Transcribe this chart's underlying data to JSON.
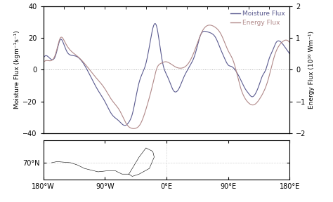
{
  "ylabel_left": "Moisture Flux (kgm⁻¹s⁻¹)",
  "ylabel_right": "Energy Flux (10¹⁰ Wm⁻¹)",
  "ylim_left": [
    -40,
    40
  ],
  "ylim_right": [
    -2,
    2
  ],
  "xlim": [
    -180,
    180
  ],
  "xticks": [
    -180,
    -90,
    0,
    90,
    180
  ],
  "xticklabels": [
    "180°W",
    "90°W",
    "0°E",
    "90°E",
    "180°E"
  ],
  "yticks_left": [
    -40,
    -20,
    0,
    20,
    40
  ],
  "yticks_right": [
    -2,
    -1,
    0,
    1,
    2
  ],
  "moisture_color": "#5a5a8f",
  "energy_color": "#b08888",
  "background_color": "#ffffff",
  "legend_moisture": "Moisture Flux",
  "legend_energy": "Energy Flux",
  "moisture_kp_x": [
    -180,
    -170,
    -162,
    -155,
    -150,
    -145,
    -138,
    -130,
    -120,
    -110,
    -100,
    -90,
    -80,
    -70,
    -60,
    -55,
    -50,
    -45,
    -40,
    -35,
    -30,
    -27,
    -24,
    -20,
    -15,
    -10,
    -5,
    0,
    5,
    10,
    18,
    25,
    35,
    42,
    50,
    58,
    65,
    72,
    78,
    85,
    90,
    95,
    100,
    108,
    115,
    120,
    125,
    130,
    135,
    140,
    145,
    150,
    155,
    160,
    165,
    170,
    175,
    180
  ],
  "moisture_kp_y": [
    7,
    7,
    9,
    19,
    16,
    11,
    9,
    8,
    3,
    -5,
    -13,
    -20,
    -28,
    -32,
    -35,
    -33,
    -28,
    -18,
    -8,
    -2,
    4,
    10,
    17,
    26,
    28,
    16,
    3,
    -3,
    -8,
    -13,
    -12,
    -5,
    3,
    10,
    22,
    24,
    23,
    20,
    14,
    7,
    3,
    2,
    0,
    -6,
    -12,
    -15,
    -17,
    -15,
    -10,
    -4,
    0,
    7,
    12,
    17,
    18,
    16,
    13,
    10
  ],
  "energy_kp_x": [
    -180,
    -170,
    -162,
    -155,
    -148,
    -140,
    -130,
    -118,
    -105,
    -90,
    -80,
    -68,
    -58,
    -48,
    -38,
    -28,
    -20,
    -14,
    -8,
    -2,
    5,
    12,
    22,
    32,
    42,
    52,
    62,
    70,
    80,
    90,
    98,
    108,
    118,
    128,
    138,
    148,
    158,
    168,
    178,
    180
  ],
  "energy_kp_y": [
    0.22,
    0.28,
    0.5,
    1.0,
    0.85,
    0.6,
    0.42,
    0.15,
    -0.2,
    -0.6,
    -0.95,
    -1.3,
    -1.72,
    -1.85,
    -1.7,
    -1.1,
    -0.45,
    0.05,
    0.2,
    0.25,
    0.2,
    0.1,
    0.05,
    0.2,
    0.65,
    1.2,
    1.4,
    1.35,
    1.1,
    0.6,
    0.25,
    -0.55,
    -1.0,
    -1.1,
    -0.85,
    -0.35,
    0.45,
    0.85,
    0.9,
    0.85
  ]
}
